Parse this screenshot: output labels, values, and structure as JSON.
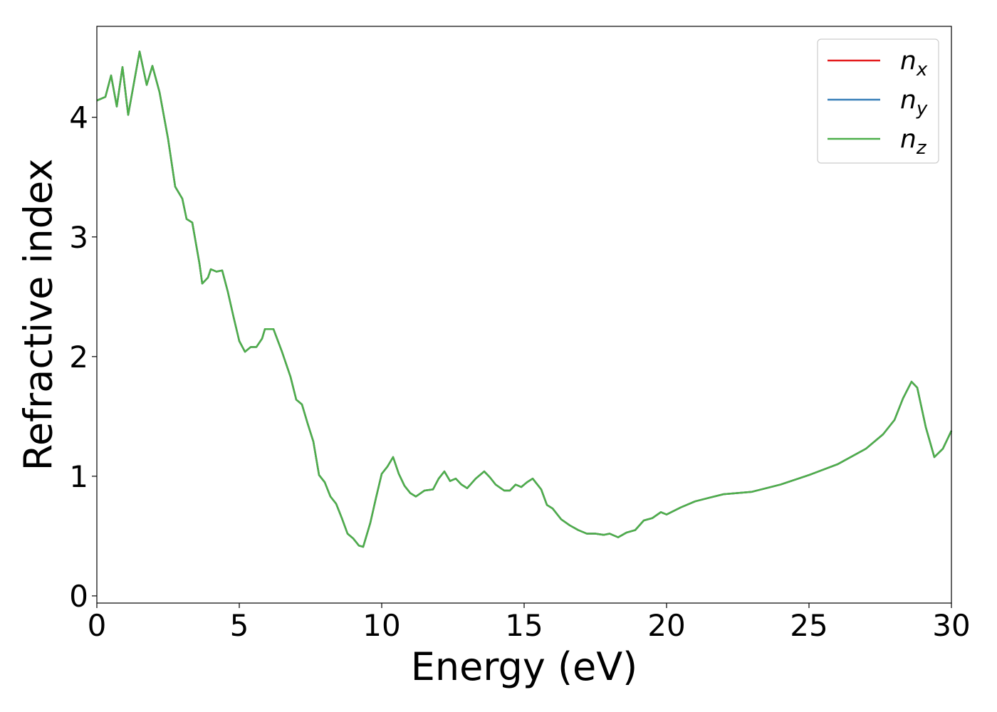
{
  "chart_data": {
    "type": "line",
    "xlabel": "Energy (eV)",
    "ylabel": "Refractive index",
    "xlim": [
      0,
      30
    ],
    "ylim": [
      -0.06,
      4.76
    ],
    "xticks": [
      0,
      5,
      10,
      15,
      20,
      25,
      30
    ],
    "yticks": [
      0,
      1,
      2,
      3,
      4
    ],
    "legend": "upper right",
    "grid": false,
    "x": [
      0,
      0.3,
      0.5,
      0.7,
      0.9,
      1.1,
      1.5,
      1.75,
      1.95,
      2.2,
      2.5,
      2.75,
      3.0,
      3.15,
      3.35,
      3.6,
      3.7,
      3.9,
      4.0,
      4.2,
      4.4,
      4.6,
      4.8,
      5.0,
      5.2,
      5.4,
      5.6,
      5.8,
      5.9,
      6.2,
      6.5,
      6.8,
      7.0,
      7.2,
      7.4,
      7.6,
      7.8,
      8.0,
      8.2,
      8.4,
      8.6,
      8.8,
      9.0,
      9.2,
      9.35,
      9.6,
      9.8,
      10.0,
      10.2,
      10.4,
      10.6,
      10.8,
      11.0,
      11.2,
      11.5,
      11.8,
      12.0,
      12.2,
      12.4,
      12.6,
      12.8,
      13.0,
      13.3,
      13.6,
      13.8,
      14.0,
      14.3,
      14.5,
      14.7,
      14.9,
      15.1,
      15.3,
      15.6,
      15.8,
      16.0,
      16.3,
      16.6,
      16.9,
      17.2,
      17.5,
      17.8,
      18.0,
      18.3,
      18.6,
      18.9,
      19.2,
      19.5,
      19.8,
      20.0,
      20.5,
      21.0,
      21.5,
      22,
      23,
      24,
      25,
      26,
      27,
      27.6,
      28.0,
      28.3,
      28.6,
      28.8,
      29.1,
      29.4,
      29.7,
      30
    ],
    "series": [
      {
        "name": "nx",
        "color": "#e41a1c",
        "values": [
          4.14,
          4.17,
          4.35,
          4.09,
          4.42,
          4.02,
          4.55,
          4.27,
          4.43,
          4.21,
          3.82,
          3.42,
          3.32,
          3.15,
          3.12,
          2.78,
          2.61,
          2.66,
          2.73,
          2.71,
          2.72,
          2.54,
          2.33,
          2.13,
          2.04,
          2.08,
          2.08,
          2.15,
          2.23,
          2.23,
          2.04,
          1.83,
          1.64,
          1.6,
          1.44,
          1.29,
          1.01,
          0.95,
          0.83,
          0.77,
          0.65,
          0.52,
          0.48,
          0.42,
          0.41,
          0.61,
          0.82,
          1.02,
          1.08,
          1.16,
          1.02,
          0.92,
          0.86,
          0.83,
          0.88,
          0.89,
          0.98,
          1.04,
          0.96,
          0.98,
          0.93,
          0.9,
          0.98,
          1.04,
          0.99,
          0.93,
          0.88,
          0.88,
          0.93,
          0.91,
          0.95,
          0.98,
          0.89,
          0.76,
          0.73,
          0.64,
          0.59,
          0.55,
          0.52,
          0.52,
          0.51,
          0.52,
          0.49,
          0.53,
          0.55,
          0.63,
          0.65,
          0.7,
          0.68,
          0.74,
          0.79,
          0.82,
          0.85,
          0.87,
          0.93,
          1.01,
          1.1,
          1.23,
          1.35,
          1.47,
          1.65,
          1.79,
          1.74,
          1.41,
          1.16,
          1.23,
          1.38
        ]
      },
      {
        "name": "ny",
        "color": "#377eb8",
        "values": [
          4.14,
          4.17,
          4.35,
          4.09,
          4.42,
          4.02,
          4.55,
          4.27,
          4.43,
          4.21,
          3.82,
          3.42,
          3.32,
          3.15,
          3.12,
          2.78,
          2.61,
          2.66,
          2.73,
          2.71,
          2.72,
          2.54,
          2.33,
          2.13,
          2.04,
          2.08,
          2.08,
          2.15,
          2.23,
          2.23,
          2.04,
          1.83,
          1.64,
          1.6,
          1.44,
          1.29,
          1.01,
          0.95,
          0.83,
          0.77,
          0.65,
          0.52,
          0.48,
          0.42,
          0.41,
          0.61,
          0.82,
          1.02,
          1.08,
          1.16,
          1.02,
          0.92,
          0.86,
          0.83,
          0.88,
          0.89,
          0.98,
          1.04,
          0.96,
          0.98,
          0.93,
          0.9,
          0.98,
          1.04,
          0.99,
          0.93,
          0.88,
          0.88,
          0.93,
          0.91,
          0.95,
          0.98,
          0.89,
          0.76,
          0.73,
          0.64,
          0.59,
          0.55,
          0.52,
          0.52,
          0.51,
          0.52,
          0.49,
          0.53,
          0.55,
          0.63,
          0.65,
          0.7,
          0.68,
          0.74,
          0.79,
          0.82,
          0.85,
          0.87,
          0.93,
          1.01,
          1.1,
          1.23,
          1.35,
          1.47,
          1.65,
          1.79,
          1.74,
          1.41,
          1.16,
          1.23,
          1.38
        ]
      },
      {
        "name": "nz",
        "color": "#4daf4a",
        "values": [
          4.14,
          4.17,
          4.35,
          4.09,
          4.42,
          4.02,
          4.55,
          4.27,
          4.43,
          4.21,
          3.82,
          3.42,
          3.32,
          3.15,
          3.12,
          2.78,
          2.61,
          2.66,
          2.73,
          2.71,
          2.72,
          2.54,
          2.33,
          2.13,
          2.04,
          2.08,
          2.08,
          2.15,
          2.23,
          2.23,
          2.04,
          1.83,
          1.64,
          1.6,
          1.44,
          1.29,
          1.01,
          0.95,
          0.83,
          0.77,
          0.65,
          0.52,
          0.48,
          0.42,
          0.41,
          0.61,
          0.82,
          1.02,
          1.08,
          1.16,
          1.02,
          0.92,
          0.86,
          0.83,
          0.88,
          0.89,
          0.98,
          1.04,
          0.96,
          0.98,
          0.93,
          0.9,
          0.98,
          1.04,
          0.99,
          0.93,
          0.88,
          0.88,
          0.93,
          0.91,
          0.95,
          0.98,
          0.89,
          0.76,
          0.73,
          0.64,
          0.59,
          0.55,
          0.52,
          0.52,
          0.51,
          0.52,
          0.49,
          0.53,
          0.55,
          0.63,
          0.65,
          0.7,
          0.68,
          0.74,
          0.79,
          0.82,
          0.85,
          0.87,
          0.93,
          1.01,
          1.1,
          1.23,
          1.35,
          1.47,
          1.65,
          1.79,
          1.74,
          1.41,
          1.16,
          1.23,
          1.38
        ]
      }
    ]
  }
}
